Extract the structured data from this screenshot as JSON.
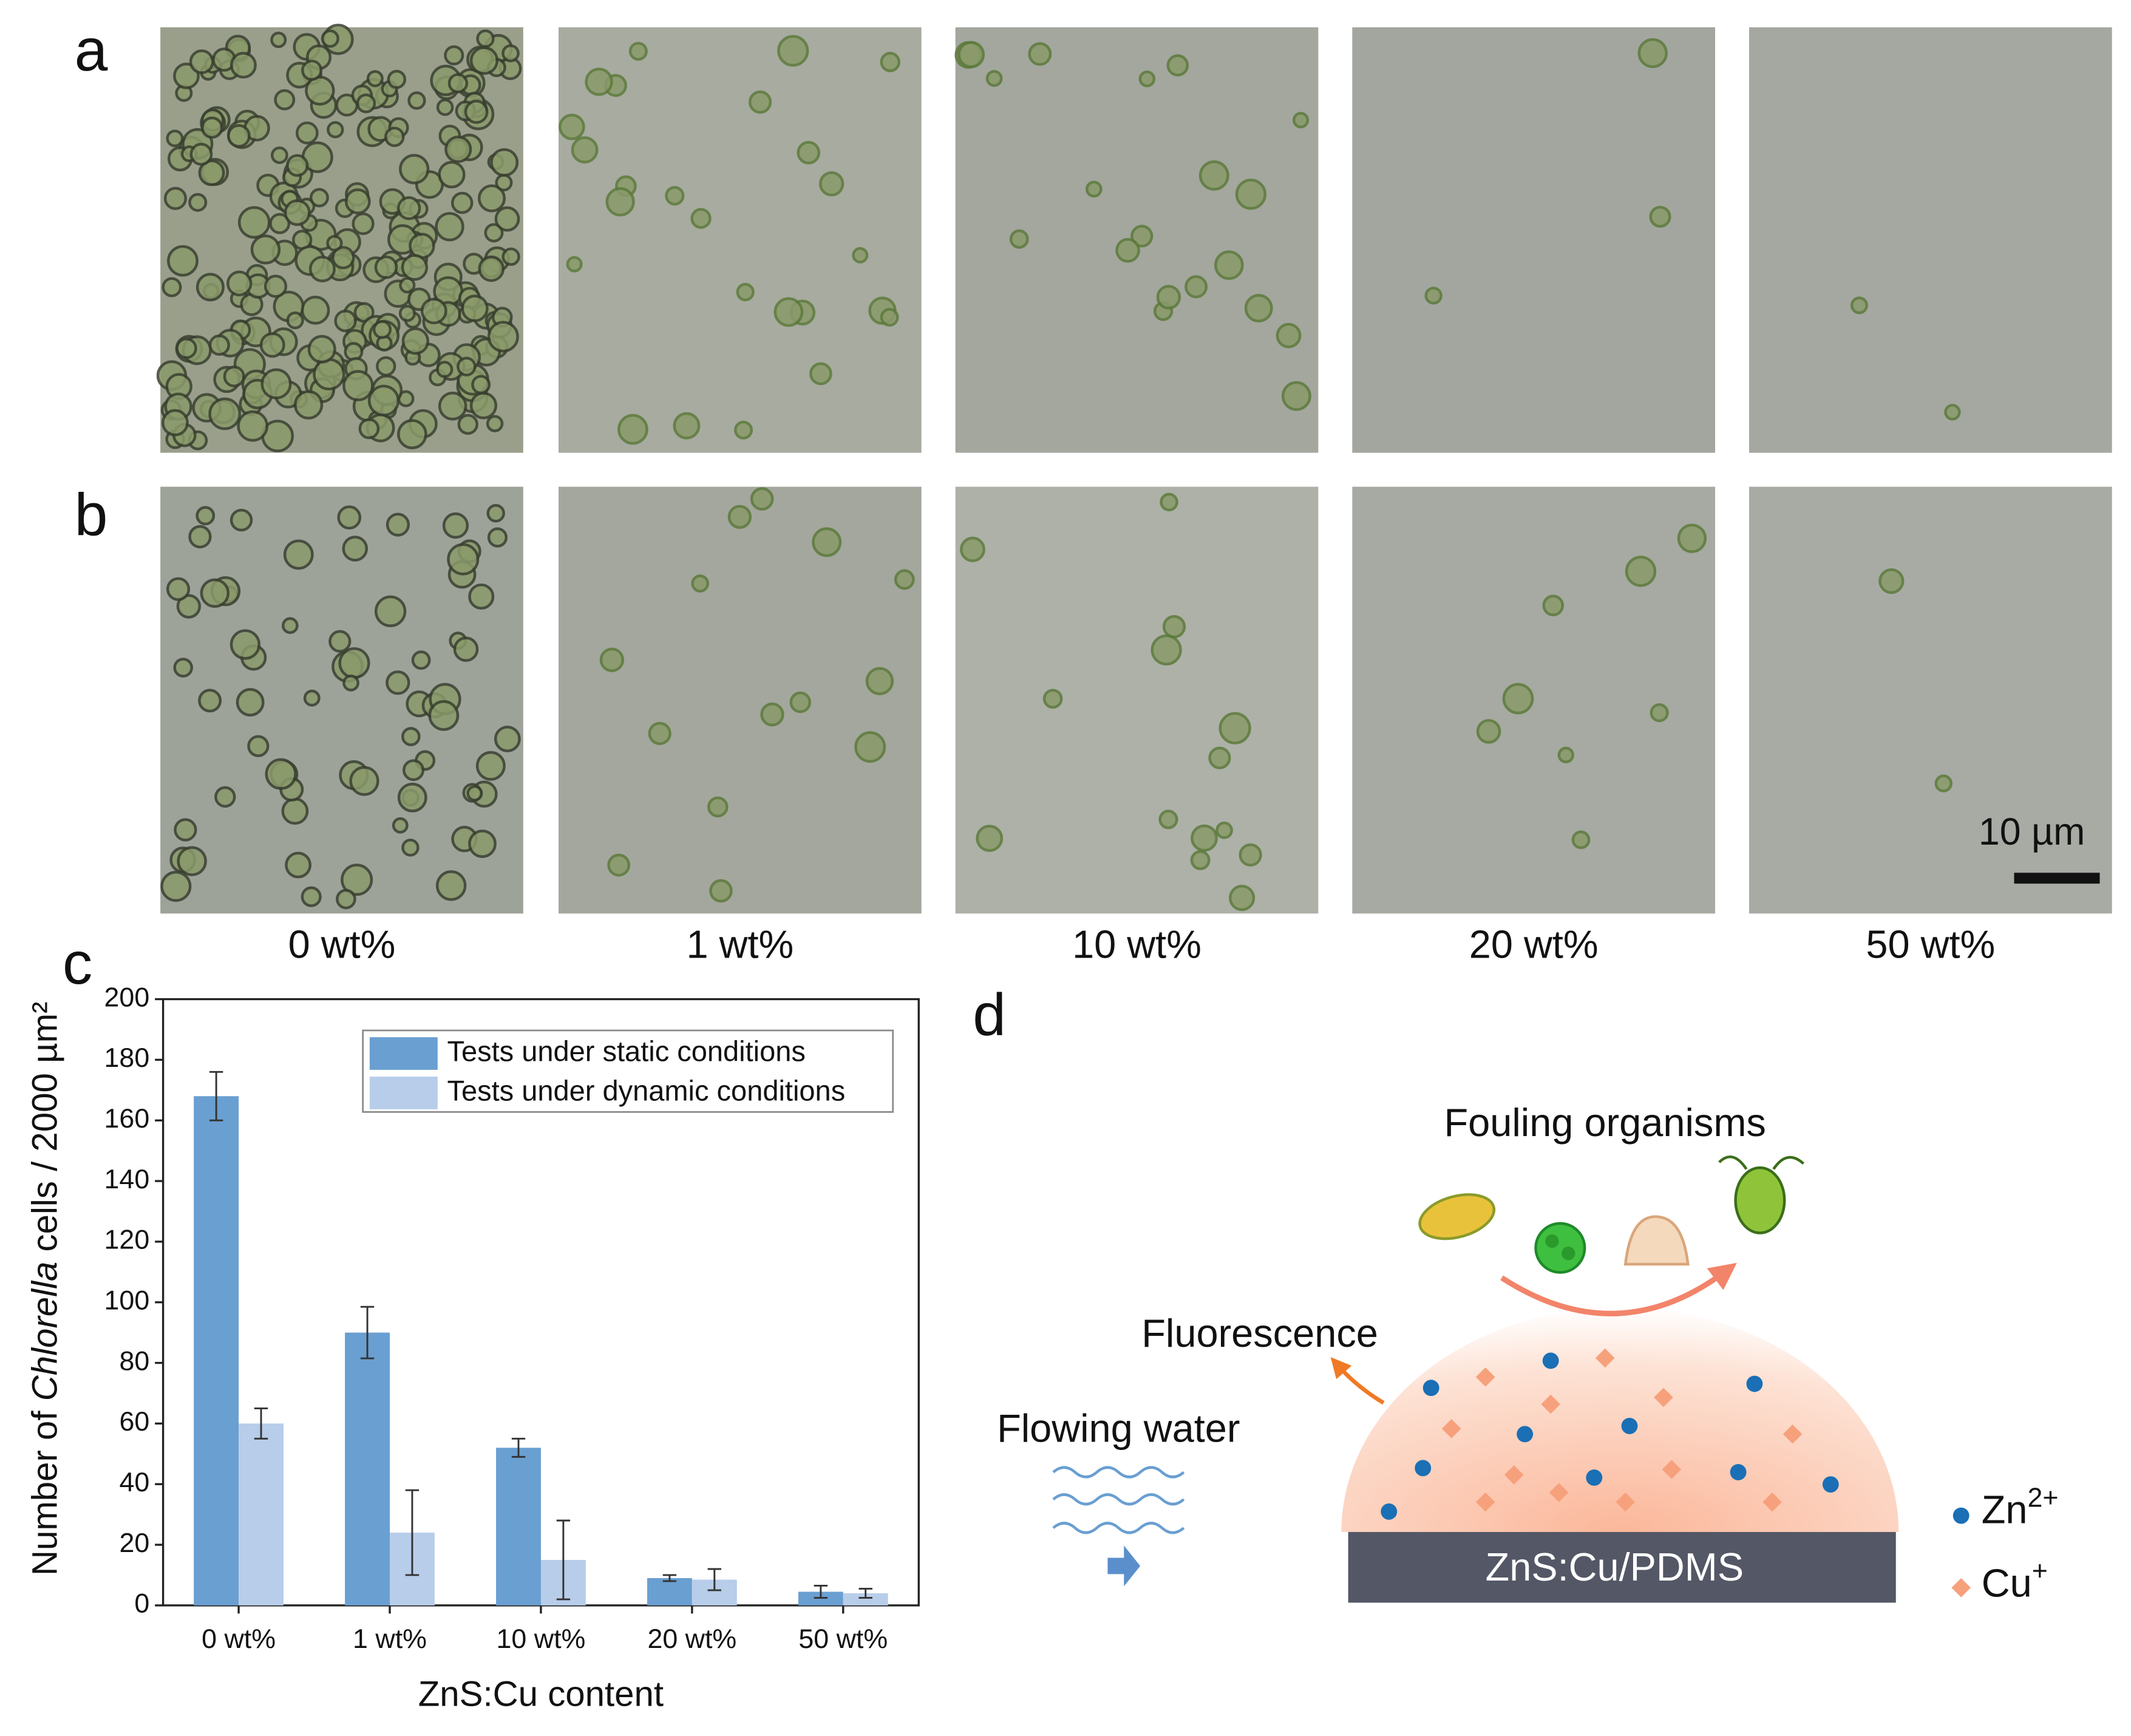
{
  "figure": {
    "panel_labels": [
      "a",
      "b",
      "c",
      "d"
    ],
    "conditions": [
      "0 wt%",
      "1 wt%",
      "10 wt%",
      "20 wt%",
      "50 wt%"
    ],
    "scale_bar": "10 µm"
  },
  "chart_data": {
    "type": "bar",
    "ylabel": [
      "Number of ",
      "Chlorella",
      " cells / 2000 µm²"
    ],
    "xlabel": "ZnS:Cu content",
    "categories": [
      "0 wt%",
      "1 wt%",
      "10 wt%",
      "20 wt%",
      "50 wt%"
    ],
    "series": [
      {
        "name": "Tests under static conditions",
        "color": "#6a9fd1",
        "values": [
          168,
          90,
          52,
          9,
          4.5
        ],
        "errors": [
          8,
          8.5,
          3,
          1,
          2
        ]
      },
      {
        "name": "Tests under dynamic conditions",
        "color": "#b7cde9",
        "values": [
          60,
          24,
          15,
          8.5,
          4
        ],
        "errors": [
          5,
          14,
          13,
          3.5,
          1.5
        ]
      }
    ],
    "ylim": [
      0,
      200
    ],
    "yticks": [
      0,
      20,
      40,
      60,
      80,
      100,
      120,
      140,
      160,
      180,
      200
    ],
    "legend": "top-right"
  },
  "diagram": {
    "fouling": "Fouling organisms",
    "fluorescence": "Fluorescence",
    "flowing": "Flowing water",
    "substrate": "ZnS:Cu/PDMS",
    "zn": {
      "base": "Zn",
      "sup": "2+"
    },
    "cu": {
      "base": "Cu",
      "sup": "+"
    }
  }
}
